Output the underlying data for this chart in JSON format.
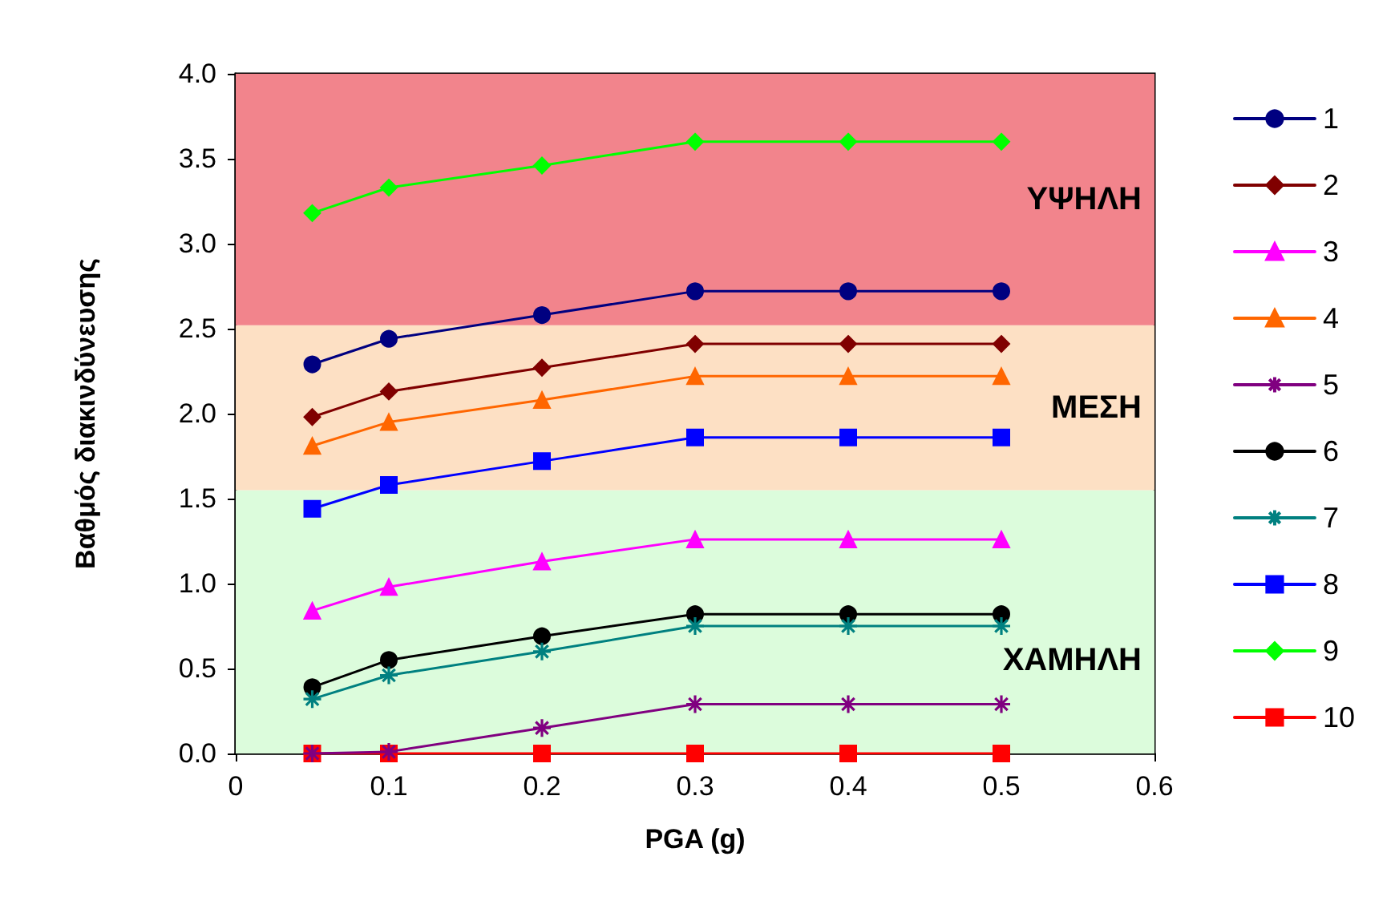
{
  "chart_data": {
    "type": "line",
    "xlabel": "PGA (g)",
    "ylabel": "Βαθμός διακινδύνευσης",
    "x": [
      0.05,
      0.1,
      0.2,
      0.3,
      0.4,
      0.5
    ],
    "xlim": [
      0,
      0.6
    ],
    "xticks": [
      0,
      0.1,
      0.2,
      0.3,
      0.4,
      0.5,
      0.6
    ],
    "ylim": [
      0,
      4
    ],
    "yticks": [
      {
        "value": 0,
        "label": "0.0"
      },
      0.5,
      {
        "value": 1,
        "label": "1.0"
      },
      1.5,
      {
        "value": 2,
        "label": "2.0"
      },
      2.5,
      {
        "value": 3,
        "label": "3.0"
      },
      3.5,
      {
        "value": 4,
        "label": "4.0"
      }
    ],
    "grid": false,
    "legend": "right",
    "line_style": "solid",
    "series": [
      {
        "name": "1",
        "color": "#000080",
        "marker": "circle",
        "values": [
          2.29,
          2.44,
          2.58,
          2.72,
          2.72,
          2.72
        ]
      },
      {
        "name": "2",
        "color": "#800000",
        "marker": "diamond",
        "values": [
          1.98,
          2.13,
          2.27,
          2.41,
          2.41,
          2.41
        ]
      },
      {
        "name": "3",
        "color": "#ff00ff",
        "marker": "triangle",
        "values": [
          0.84,
          0.98,
          1.13,
          1.26,
          1.26,
          1.26
        ]
      },
      {
        "name": "4",
        "color": "#ff6600",
        "marker": "triangle",
        "values": [
          1.81,
          1.95,
          2.08,
          2.22,
          2.22,
          2.22
        ]
      },
      {
        "name": "5",
        "color": "#800080",
        "marker": "cross",
        "values": [
          0,
          0.01,
          0.15,
          0.29,
          0.29,
          0.29
        ]
      },
      {
        "name": "6",
        "color": "#000000",
        "marker": "circle",
        "values": [
          0.39,
          0.55,
          0.69,
          0.82,
          0.82,
          0.82
        ]
      },
      {
        "name": "7",
        "color": "#008080",
        "marker": "cross",
        "values": [
          0.32,
          0.46,
          0.6,
          0.75,
          0.75,
          0.75
        ]
      },
      {
        "name": "8",
        "color": "#0000ff",
        "marker": "square",
        "values": [
          1.44,
          1.58,
          1.72,
          1.86,
          1.86,
          1.86
        ]
      },
      {
        "name": "9",
        "color": "#00ff00",
        "marker": "diamond",
        "values": [
          3.18,
          3.33,
          3.46,
          3.6,
          3.6,
          3.6
        ]
      },
      {
        "name": "10",
        "color": "#ff0000",
        "marker": "square",
        "values": [
          0,
          0,
          0,
          0,
          0,
          0
        ]
      }
    ],
    "bands": [
      {
        "axis": "y",
        "from": 0,
        "to": 1.55,
        "label": "ΧΑΜΗΛΗ",
        "color": "#dcfcdc"
      },
      {
        "axis": "y",
        "from": 1.55,
        "to": 2.52,
        "label": "ΜΕΣΗ",
        "color": "#fde0c4"
      },
      {
        "axis": "y",
        "from": 2.52,
        "to": 4,
        "label": "ΥΨΗΛΗ",
        "color": "#f2848c"
      }
    ]
  }
}
